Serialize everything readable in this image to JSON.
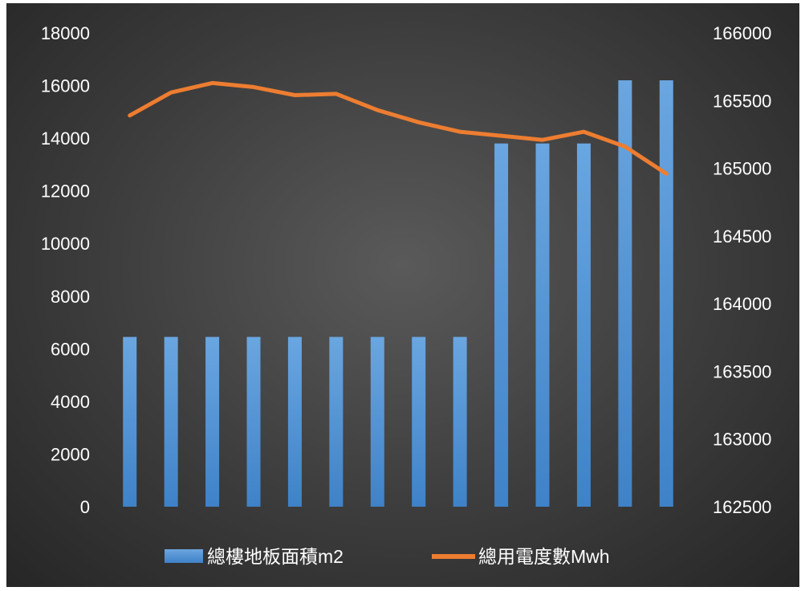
{
  "chart_data": {
    "type": "bar",
    "categories": [
      "",
      "",
      "",
      "",
      "",
      "",
      "",
      "",
      "",
      "",
      "",
      "",
      "",
      ""
    ],
    "series": [
      {
        "name": "總樓地板面積m2",
        "type": "bar",
        "axis": "left",
        "values": [
          6450,
          6450,
          6450,
          6450,
          6450,
          6450,
          6450,
          6450,
          6450,
          13800,
          13800,
          13800,
          16200,
          16200
        ]
      },
      {
        "name": "總用電度數Mwh",
        "type": "line",
        "axis": "right",
        "values": [
          165390,
          165560,
          165630,
          165600,
          165540,
          165550,
          165430,
          165340,
          165270,
          165240,
          165210,
          165270,
          165160,
          164960
        ]
      }
    ],
    "y_left": {
      "ylim": [
        0,
        18000
      ],
      "ticks": [
        0,
        2000,
        4000,
        6000,
        8000,
        10000,
        12000,
        14000,
        16000,
        18000
      ]
    },
    "y_right": {
      "ylim": [
        162500,
        166000
      ],
      "ticks": [
        162500,
        163000,
        163500,
        164000,
        164500,
        165000,
        165500,
        166000
      ]
    },
    "legend": {
      "position": "bottom"
    },
    "grid": false,
    "colors": {
      "bar": "#5b9bd5",
      "line": "#ed7d31",
      "text": "#ffffff",
      "background": "#404040"
    }
  }
}
